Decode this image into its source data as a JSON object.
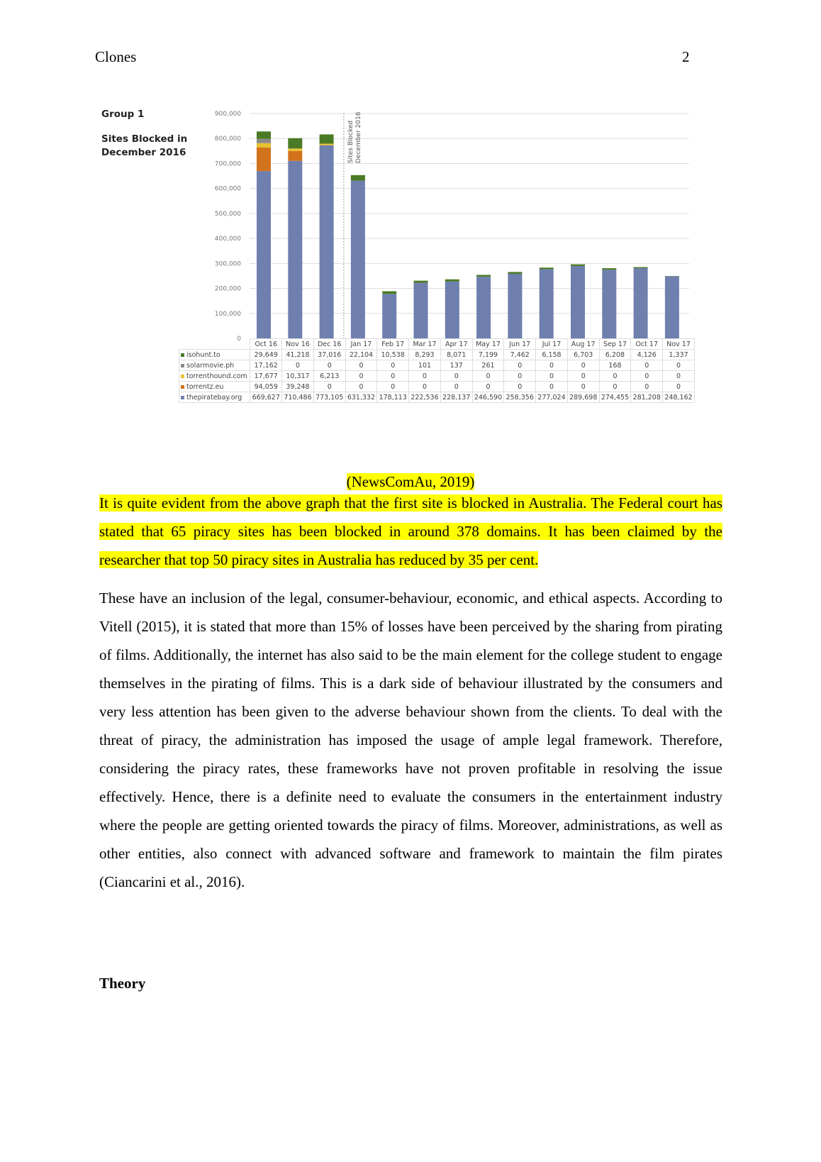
{
  "header": {
    "title": "Clones",
    "page_number": "2"
  },
  "figure_labels": {
    "group": "Group 1",
    "sites_blocked": "Sites Blocked in December 2016"
  },
  "chart_data": {
    "type": "bar",
    "stacked": true,
    "categories": [
      "Oct 16",
      "Nov 16",
      "Dec 16",
      "Jan 17",
      "Feb 17",
      "Mar 17",
      "Apr 17",
      "May 17",
      "Jun 17",
      "Jul 17",
      "Aug 17",
      "Sep 17",
      "Oct 17",
      "Nov 17"
    ],
    "yticks": [
      "0",
      "100,000",
      "200,000",
      "300,000",
      "400,000",
      "500,000",
      "600,000",
      "700,000",
      "800,000",
      "900,000"
    ],
    "ylim": [
      0,
      900000
    ],
    "grid": true,
    "annotation": "Sites Blocked December 2016",
    "series": [
      {
        "name": "isohunt.to",
        "color": "#4a7a25",
        "values": [
          29649,
          41218,
          37016,
          22104,
          10538,
          8293,
          8071,
          7199,
          7462,
          6158,
          6703,
          6208,
          4126,
          1337
        ],
        "labels": [
          "29,649",
          "41,218",
          "37,016",
          "22,104",
          "10,538",
          "8,293",
          "8,071",
          "7,199",
          "7,462",
          "6,158",
          "6,703",
          "6,208",
          "4,126",
          "1,337"
        ]
      },
      {
        "name": "solarmovie.ph",
        "color": "#8a8a8a",
        "values": [
          17162,
          0,
          0,
          0,
          0,
          101,
          137,
          261,
          0,
          0,
          0,
          168,
          0,
          0
        ],
        "labels": [
          "17,162",
          "0",
          "0",
          "0",
          "0",
          "101",
          "137",
          "261",
          "0",
          "0",
          "0",
          "168",
          "0",
          "0"
        ]
      },
      {
        "name": "torrenthound.com",
        "color": "#e8c030",
        "values": [
          17677,
          10317,
          6213,
          0,
          0,
          0,
          0,
          0,
          0,
          0,
          0,
          0,
          0,
          0
        ],
        "labels": [
          "17,677",
          "10,317",
          "6,213",
          "0",
          "0",
          "0",
          "0",
          "0",
          "0",
          "0",
          "0",
          "0",
          "0",
          "0"
        ]
      },
      {
        "name": "torrentz.eu",
        "color": "#d2721c",
        "values": [
          94059,
          39248,
          0,
          0,
          0,
          0,
          0,
          0,
          0,
          0,
          0,
          0,
          0,
          0
        ],
        "labels": [
          "94,059",
          "39,248",
          "0",
          "0",
          "0",
          "0",
          "0",
          "0",
          "0",
          "0",
          "0",
          "0",
          "0",
          "0"
        ]
      },
      {
        "name": "thepiratebay.org",
        "color": "#6f7fae",
        "values": [
          669627,
          710486,
          773105,
          631332,
          178113,
          222536,
          228137,
          246590,
          258356,
          277024,
          289698,
          274455,
          281208,
          248162
        ],
        "labels": [
          "669,627",
          "710,486",
          "773,105",
          "631,332",
          "178,113",
          "222,536",
          "228,137",
          "246,590",
          "258,356",
          "277,024",
          "289,698",
          "274,455",
          "281,208",
          "248,162"
        ]
      }
    ]
  },
  "caption": "(NewsComAu, 2019)",
  "paragraphs": [
    "It is quite evident from the above graph that the first site is blocked in Australia. The Federal court has stated that 65 piracy sites has been blocked in around 378 domains. It has been claimed by the researcher that top 50 piracy sites in Australia has reduced by 35 per cent.",
    "These have an inclusion of the legal, consumer-behaviour, economic, and ethical aspects. According to Vitell (2015), it is stated that more than 15% of losses have been perceived by the sharing from pirating of films. Additionally, the internet has also said to be the main element for the college student to engage themselves in the pirating of films. This is a dark side of behaviour illustrated by the consumers and very less attention has been given to the adverse behaviour shown from the clients. To deal with the threat of piracy, the administration has imposed the usage of ample legal framework. Therefore, considering the piracy rates, these frameworks have not proven profitable in resolving the issue effectively. Hence, there is a definite need to evaluate the consumers in the entertainment industry where the people are getting oriented towards the piracy of films. Moreover, administrations, as well as other entities, also connect with advanced software and framework to maintain the film pirates (Ciancarini et al., 2016)."
  ],
  "heading": "Theory"
}
